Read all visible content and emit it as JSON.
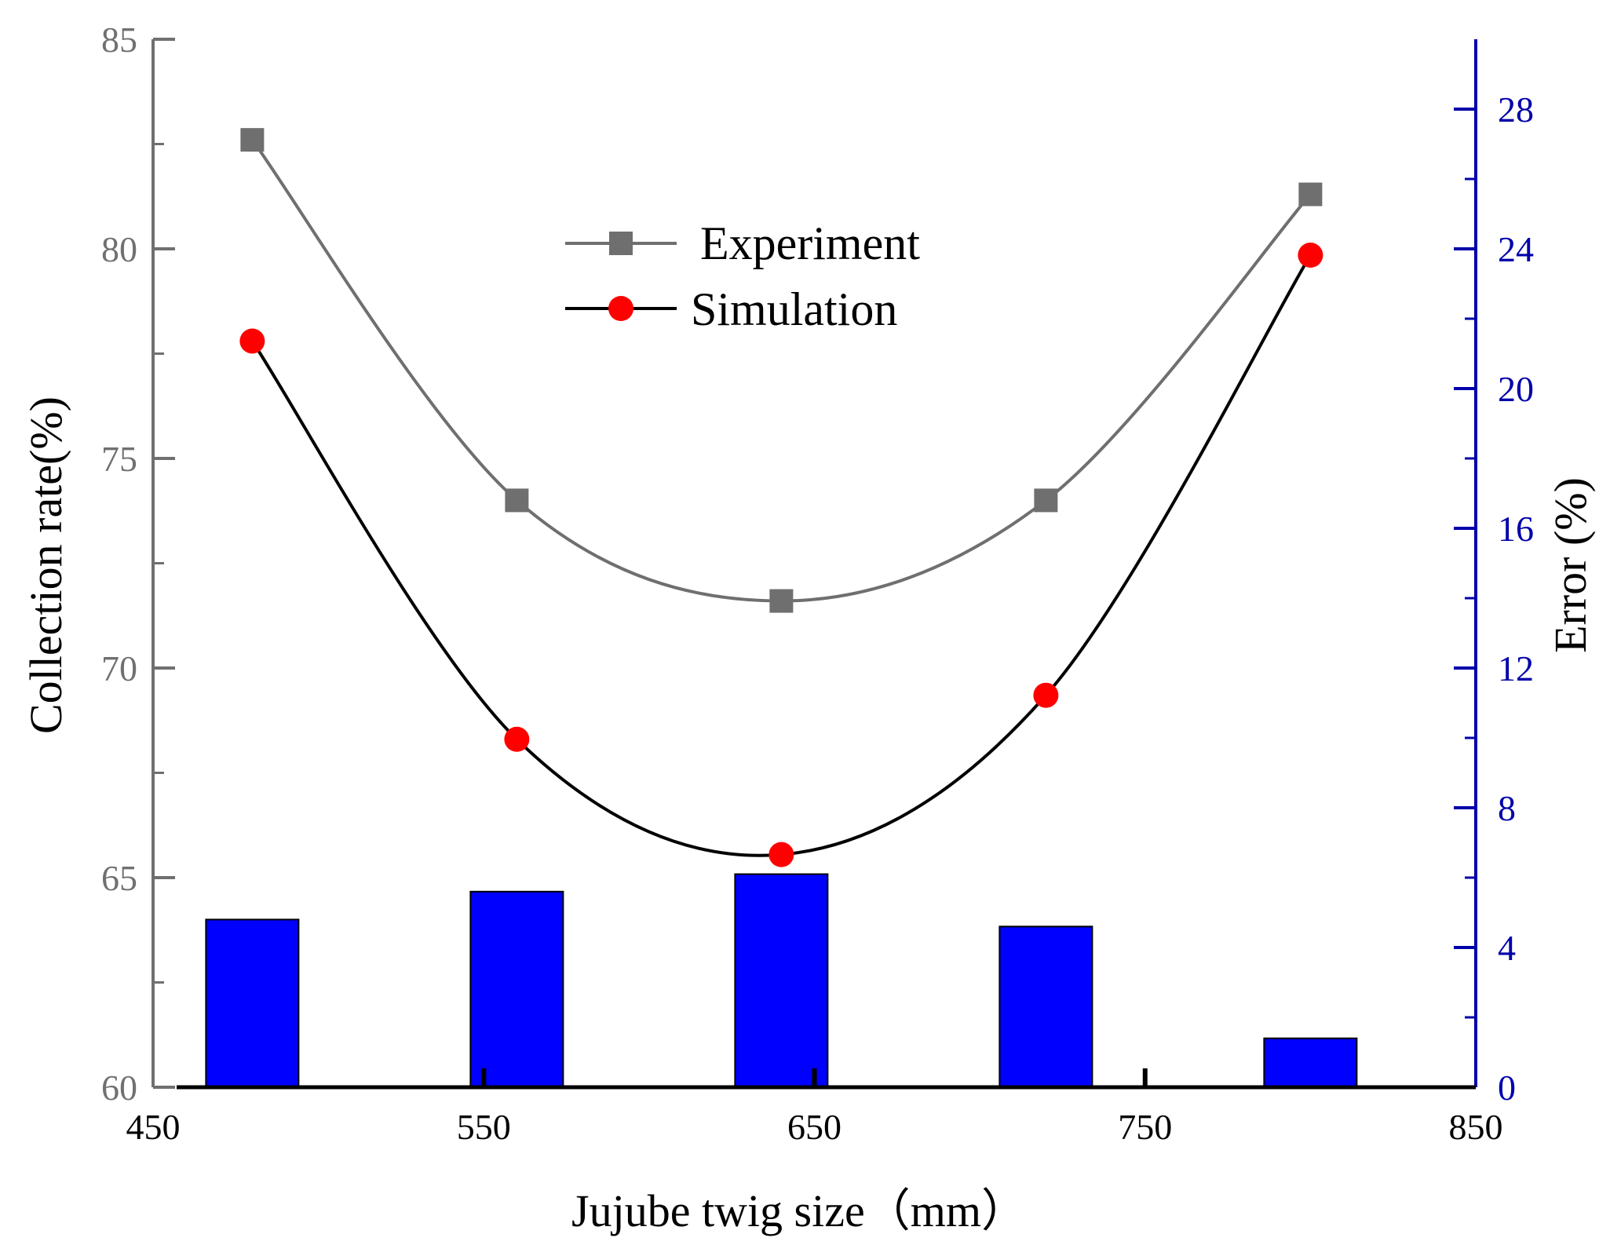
{
  "chart_data": {
    "type": "line+bar",
    "x": [
      480,
      560,
      640,
      720,
      800
    ],
    "series": [
      {
        "name": "Experiment",
        "type": "line",
        "axis": "left",
        "marker": "square",
        "color": "#6f6f6f",
        "values": [
          82.6,
          74.0,
          71.6,
          74.0,
          81.3
        ]
      },
      {
        "name": "Simulation",
        "type": "line",
        "axis": "left",
        "marker": "circle",
        "color": "#000000",
        "marker_color": "#ff0000",
        "values": [
          77.8,
          68.3,
          65.55,
          69.35,
          79.85
        ]
      },
      {
        "name": "Error",
        "type": "bar",
        "axis": "right",
        "color": "#0000ff",
        "values": [
          4.8,
          5.6,
          6.1,
          4.6,
          1.4
        ]
      }
    ],
    "xlabel": "Jujube twig size（mm）",
    "ylabel_left": "Collection rate(%)",
    "ylabel_right": "Error (%)",
    "xlim": [
      450,
      850
    ],
    "ylim_left": [
      60,
      85
    ],
    "ylim_right": [
      0,
      30
    ],
    "xticks": [
      450,
      550,
      650,
      750,
      850
    ],
    "yticks_left": [
      60,
      65,
      70,
      75,
      80,
      85
    ],
    "yticks_right": [
      0,
      4,
      8,
      12,
      16,
      20,
      24,
      28
    ],
    "legend_position": "upper-center",
    "colors": {
      "left_axis": "#707070",
      "right_axis": "#0000aa",
      "bars": "#0000ff"
    }
  }
}
